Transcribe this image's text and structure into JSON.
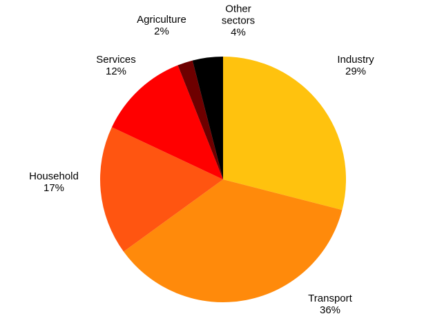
{
  "chart_data": {
    "type": "pie",
    "categories": [
      "Industry",
      "Transport",
      "Household",
      "Services",
      "Agriculture",
      "Other sectors"
    ],
    "values": [
      29,
      36,
      17,
      12,
      2,
      4
    ],
    "value_labels": [
      "29%",
      "36%",
      "17%",
      "12%",
      "2%",
      "4%"
    ],
    "colors": [
      "#FFC20E",
      "#FF8A0B",
      "#FF5511",
      "#FF0000",
      "#6E0000",
      "#000000"
    ]
  }
}
